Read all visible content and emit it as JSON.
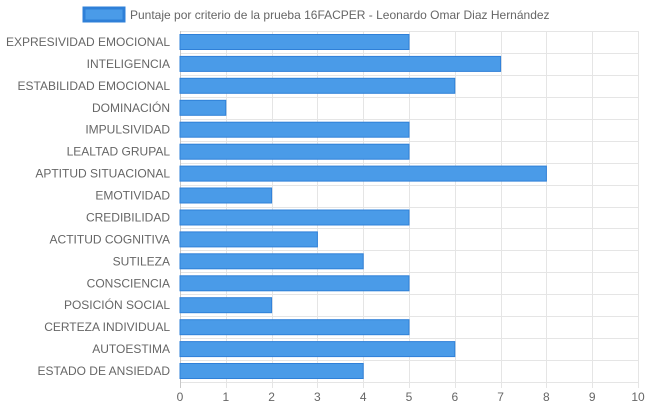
{
  "chart_data": {
    "type": "bar",
    "orientation": "horizontal",
    "title": "",
    "xlabel": "",
    "ylabel": "",
    "xlim": [
      0,
      10
    ],
    "x_ticks": [
      "0",
      "1",
      "2",
      "3",
      "4",
      "5",
      "6",
      "7",
      "8",
      "9",
      "10"
    ],
    "grid": true,
    "legend_position": "top-center",
    "categories": [
      "EXPRESIVIDAD EMOCIONAL",
      "INTELIGENCIA",
      "ESTABILIDAD EMOCIONAL",
      "DOMINACIÓN",
      "IMPULSIVIDAD",
      "LEALTAD GRUPAL",
      "APTITUD SITUACIONAL",
      "EMOTIVIDAD",
      "CREDIBILIDAD",
      "ACTITUD COGNITIVA",
      "SUTILEZA",
      "CONSCIENCIA",
      "POSICIÓN SOCIAL",
      "CERTEZA INDIVIDUAL",
      "AUTOESTIMA",
      "ESTADO DE ANSIEDAD"
    ],
    "series": [
      {
        "name": "Puntaje por criterio de la prueba 16FACPER - Leonardo Omar Diaz Hernández",
        "color": "#4a9be8",
        "border_color": "#2f80d8",
        "values": [
          5,
          7,
          6,
          1,
          5,
          5,
          8,
          2,
          5,
          3,
          4,
          5,
          2,
          5,
          6,
          4
        ]
      }
    ]
  },
  "colors": {
    "grid": "#e5e5e5",
    "axis": "#c8c8c8",
    "text": "#666666"
  }
}
